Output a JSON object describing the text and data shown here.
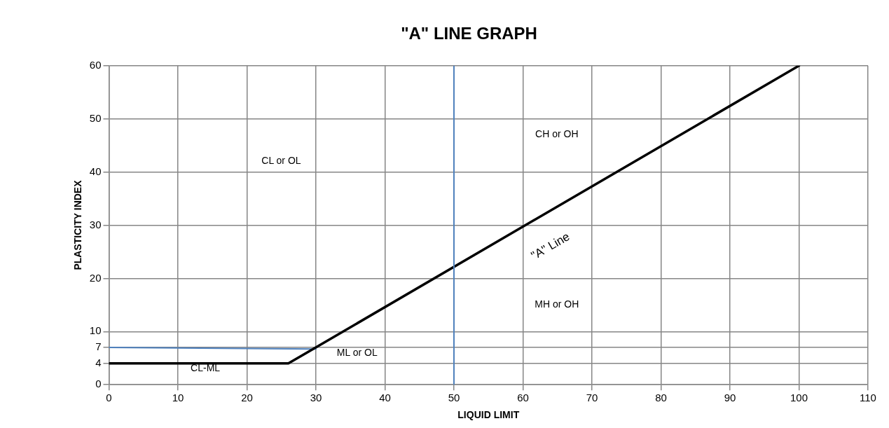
{
  "chart_data": {
    "type": "line",
    "title": "\"A\" LINE GRAPH",
    "xlabel": "LIQUID LIMIT",
    "ylabel": "PLASTICITY INDEX",
    "xlim": [
      0,
      110
    ],
    "xticks": [
      0,
      10,
      20,
      30,
      40,
      50,
      60,
      70,
      80,
      90,
      100,
      110
    ],
    "ylim": [
      0,
      60
    ],
    "yticks": [
      0,
      4,
      7,
      10,
      20,
      30,
      40,
      50,
      60
    ],
    "grid": true,
    "legend": false,
    "marker": "none",
    "line_style": "solid",
    "series": [
      {
        "color": "#000000",
        "x": [
          0,
          26,
          100
        ],
        "values": [
          4,
          4,
          60
        ]
      },
      {
        "color": "#4f81bd",
        "x": [
          0,
          30
        ],
        "values": [
          7,
          6.7
        ]
      }
    ],
    "ref_lines": [
      {
        "axis": "x",
        "value": 50,
        "color": "#4f81bd"
      }
    ],
    "annotations": [
      "CL or OL",
      "CH or OH",
      "MH or OH",
      "CL-ML",
      "ML or OL",
      "\"A\" Line"
    ]
  }
}
